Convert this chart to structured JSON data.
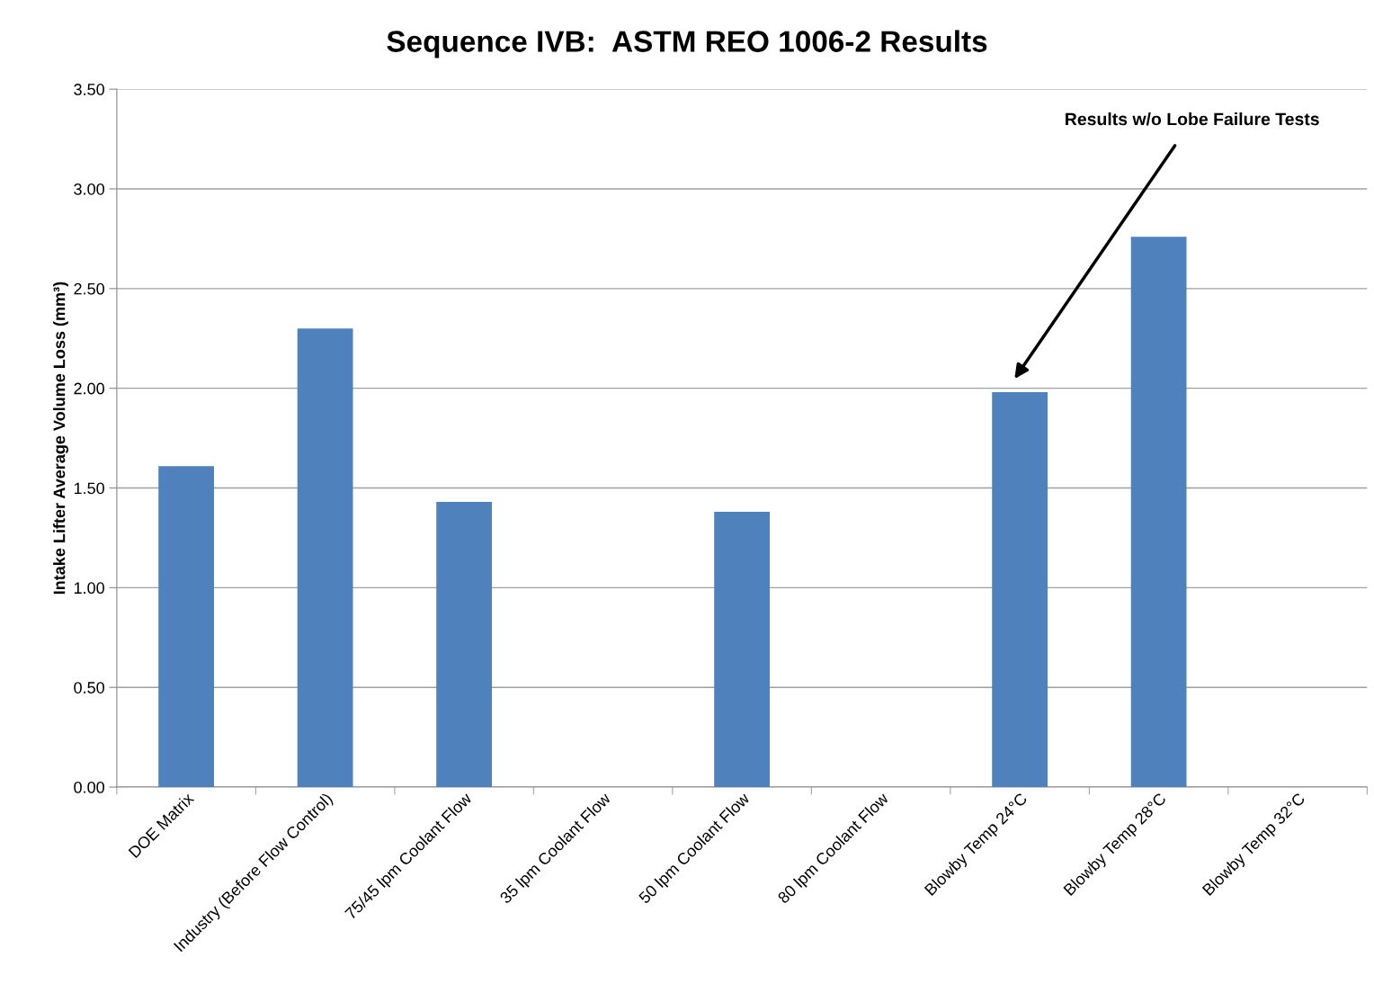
{
  "chart_data": {
    "type": "bar",
    "title": "Sequence IVB:  ASTM REO 1006-2 Results",
    "ylabel": "Intake Lifter Average Volume Loss (mm³)",
    "categories": [
      "DOE Matrix",
      "Industry (Before Flow Control)",
      "75/45 lpm Coolant Flow",
      "35 lpm Coolant Flow",
      "50 lpm Coolant Flow",
      "80 lpm Coolant Flow",
      "Blowby Temp 24°C",
      "Blowby Temp 28°C",
      "Blowby Temp 32°C"
    ],
    "values": [
      1.61,
      2.3,
      1.43,
      null,
      1.38,
      null,
      1.98,
      2.76,
      null
    ],
    "color": "#4f81bd",
    "ylim": [
      0,
      3.5
    ],
    "yticks": [
      {
        "value": 0,
        "label": "0.00"
      },
      {
        "value": 0.5,
        "label": "0.50"
      },
      {
        "value": 1,
        "label": "1.00"
      },
      {
        "value": 1.5,
        "label": "1.50"
      },
      {
        "value": 2,
        "label": "2.00"
      },
      {
        "value": 2.5,
        "label": "2.50"
      },
      {
        "value": 3,
        "label": "3.00"
      },
      {
        "value": 3.5,
        "label": "3.50"
      }
    ],
    "grid": "y",
    "legend": false,
    "annotations": [
      "Results w/o Lobe Failure Tests"
    ]
  }
}
